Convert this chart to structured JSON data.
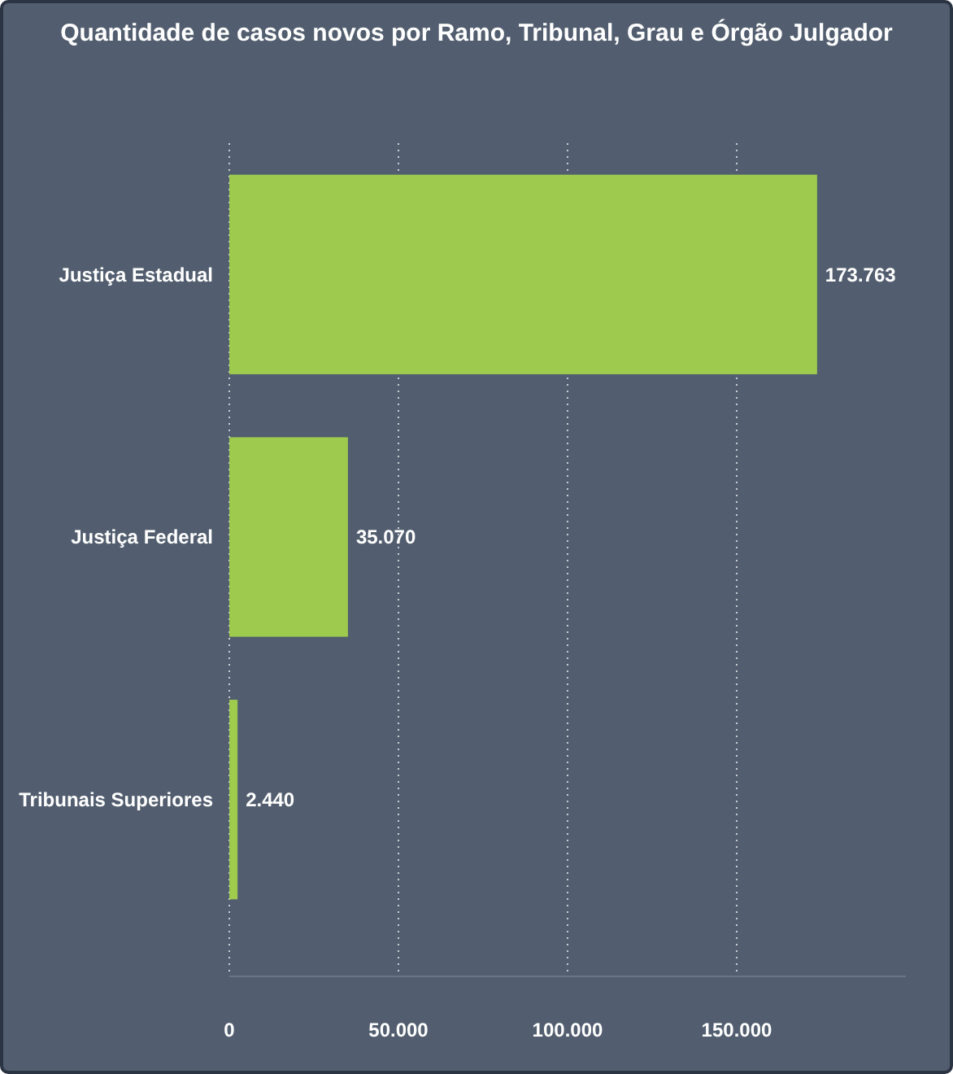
{
  "chart_data": {
    "type": "bar",
    "orientation": "horizontal",
    "title": "Quantidade de casos novos por Ramo, Tribunal, Grau e Órgão Julgador",
    "categories": [
      "Justiça Estadual",
      "Justiça Federal",
      "Tribunais Superiores"
    ],
    "values": [
      173763,
      35070,
      2440
    ],
    "value_labels": [
      "173.763",
      "35.070",
      "2.440"
    ],
    "color": "#9ecb4e",
    "xlim": [
      0,
      200000
    ],
    "xticks": [
      {
        "value": 0,
        "label": "0"
      },
      {
        "value": 50000,
        "label": "50.000"
      },
      {
        "value": 100000,
        "label": "100.000"
      },
      {
        "value": 150000,
        "label": "150.000"
      }
    ],
    "grid": "x"
  }
}
